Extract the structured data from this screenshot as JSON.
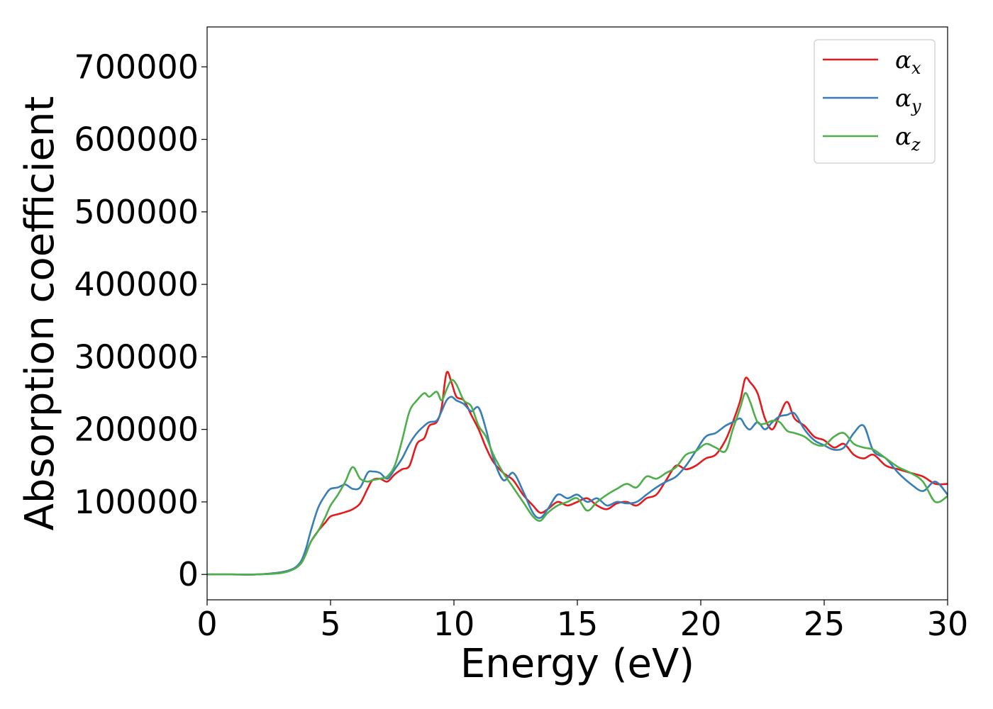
{
  "chart_data": {
    "type": "line",
    "title": "",
    "xlabel": "Energy (eV)",
    "ylabel": "Absorption coefficient",
    "xlim": [
      0,
      30
    ],
    "ylim": [
      -35000,
      755000
    ],
    "xticks": [
      0,
      5,
      10,
      15,
      20,
      25,
      30
    ],
    "yticks": [
      0,
      100000,
      200000,
      300000,
      400000,
      500000,
      600000,
      700000
    ],
    "grid": false,
    "legend_position": "top-right",
    "series": [
      {
        "name": "α_x",
        "symbol": "α",
        "subscript": "x",
        "color": "#e41a1c",
        "x": [
          0,
          1,
          2,
          3,
          3.5,
          3.8,
          4.0,
          4.2,
          4.5,
          4.8,
          5.0,
          5.3,
          5.6,
          5.9,
          6.2,
          6.5,
          6.7,
          7.0,
          7.3,
          7.6,
          7.9,
          8.2,
          8.5,
          8.8,
          9.0,
          9.3,
          9.5,
          9.7,
          9.9,
          10.1,
          10.4,
          10.7,
          11.0,
          11.3,
          11.6,
          12.0,
          12.4,
          12.8,
          13.2,
          13.5,
          13.8,
          14.2,
          14.6,
          15.0,
          15.4,
          15.8,
          16.2,
          16.6,
          17.0,
          17.4,
          17.8,
          18.2,
          18.6,
          19.0,
          19.4,
          19.8,
          20.2,
          20.6,
          21.0,
          21.3,
          21.6,
          21.8,
          22.0,
          22.3,
          22.6,
          22.9,
          23.2,
          23.5,
          23.8,
          24.2,
          24.6,
          25.0,
          25.4,
          25.8,
          26.2,
          26.6,
          27.0,
          27.5,
          28.0,
          28.5,
          29.0,
          29.5,
          30.0
        ],
        "y": [
          0,
          0,
          0,
          3000,
          8000,
          15000,
          28000,
          45000,
          60000,
          72000,
          80000,
          83000,
          86000,
          90000,
          98000,
          118000,
          130000,
          132000,
          128000,
          138000,
          145000,
          150000,
          180000,
          188000,
          205000,
          210000,
          230000,
          278000,
          265000,
          245000,
          240000,
          220000,
          200000,
          175000,
          155000,
          140000,
          130000,
          110000,
          95000,
          85000,
          90000,
          100000,
          95000,
          100000,
          105000,
          95000,
          90000,
          98000,
          100000,
          95000,
          105000,
          110000,
          130000,
          150000,
          145000,
          150000,
          160000,
          165000,
          185000,
          210000,
          240000,
          270000,
          265000,
          250000,
          215000,
          200000,
          220000,
          238000,
          215000,
          205000,
          190000,
          185000,
          175000,
          180000,
          165000,
          160000,
          165000,
          150000,
          145000,
          140000,
          135000,
          125000,
          125000
        ]
      },
      {
        "name": "α_y",
        "symbol": "α",
        "subscript": "y",
        "color": "#377eb8",
        "x": [
          0,
          1,
          2,
          3,
          3.5,
          3.8,
          4.0,
          4.2,
          4.5,
          4.8,
          5.0,
          5.3,
          5.6,
          5.9,
          6.2,
          6.5,
          6.7,
          7.0,
          7.3,
          7.6,
          7.9,
          8.2,
          8.5,
          8.8,
          9.0,
          9.3,
          9.5,
          9.7,
          9.9,
          10.1,
          10.4,
          10.7,
          11.0,
          11.3,
          11.6,
          12.0,
          12.4,
          12.8,
          13.2,
          13.5,
          13.8,
          14.2,
          14.6,
          15.0,
          15.4,
          15.8,
          16.2,
          16.6,
          17.0,
          17.4,
          17.8,
          18.2,
          18.6,
          19.0,
          19.4,
          19.8,
          20.2,
          20.6,
          21.0,
          21.3,
          21.6,
          21.8,
          22.0,
          22.3,
          22.6,
          22.9,
          23.2,
          23.5,
          23.8,
          24.2,
          24.6,
          25.0,
          25.4,
          25.8,
          26.2,
          26.6,
          27.0,
          27.5,
          28.0,
          28.5,
          29.0,
          29.5,
          30.0
        ],
        "y": [
          0,
          0,
          0,
          3000,
          8000,
          18000,
          35000,
          60000,
          92000,
          110000,
          118000,
          120000,
          124000,
          118000,
          120000,
          140000,
          142000,
          140000,
          132000,
          145000,
          160000,
          180000,
          195000,
          205000,
          210000,
          212000,
          225000,
          240000,
          245000,
          240000,
          235000,
          225000,
          230000,
          200000,
          160000,
          130000,
          140000,
          115000,
          85000,
          78000,
          90000,
          110000,
          105000,
          110000,
          100000,
          105000,
          95000,
          100000,
          98000,
          100000,
          110000,
          120000,
          128000,
          135000,
          150000,
          170000,
          190000,
          195000,
          205000,
          210000,
          215000,
          205000,
          200000,
          210000,
          200000,
          210000,
          218000,
          220000,
          222000,
          200000,
          185000,
          178000,
          172000,
          175000,
          195000,
          205000,
          170000,
          160000,
          140000,
          125000,
          115000,
          128000,
          110000
        ]
      },
      {
        "name": "α_z",
        "symbol": "α",
        "subscript": "z",
        "color": "#4daf4a",
        "x": [
          0,
          1,
          2,
          3,
          3.5,
          3.8,
          4.0,
          4.2,
          4.5,
          4.8,
          5.0,
          5.3,
          5.6,
          5.9,
          6.2,
          6.5,
          6.7,
          7.0,
          7.3,
          7.6,
          7.9,
          8.2,
          8.5,
          8.8,
          9.0,
          9.3,
          9.5,
          9.7,
          9.9,
          10.1,
          10.4,
          10.7,
          11.0,
          11.3,
          11.6,
          12.0,
          12.4,
          12.8,
          13.2,
          13.5,
          13.8,
          14.2,
          14.6,
          15.0,
          15.4,
          15.8,
          16.2,
          16.6,
          17.0,
          17.4,
          17.8,
          18.2,
          18.6,
          19.0,
          19.4,
          19.8,
          20.2,
          20.6,
          21.0,
          21.3,
          21.6,
          21.8,
          22.0,
          22.3,
          22.6,
          22.9,
          23.2,
          23.5,
          23.8,
          24.2,
          24.6,
          25.0,
          25.4,
          25.8,
          26.2,
          26.6,
          27.0,
          27.5,
          28.0,
          28.5,
          29.0,
          29.5,
          30.0
        ],
        "y": [
          0,
          0,
          0,
          2000,
          7000,
          15000,
          28000,
          45000,
          60000,
          80000,
          95000,
          110000,
          128000,
          148000,
          132000,
          128000,
          130000,
          132000,
          135000,
          150000,
          185000,
          225000,
          240000,
          250000,
          245000,
          252000,
          240000,
          255000,
          268000,
          262000,
          240000,
          232000,
          205000,
          190000,
          165000,
          140000,
          120000,
          100000,
          80000,
          74000,
          85000,
          95000,
          100000,
          105000,
          88000,
          100000,
          110000,
          118000,
          125000,
          120000,
          135000,
          132000,
          140000,
          148000,
          165000,
          170000,
          180000,
          175000,
          170000,
          200000,
          230000,
          250000,
          238000,
          210000,
          208000,
          212000,
          210000,
          198000,
          195000,
          190000,
          180000,
          178000,
          190000,
          195000,
          180000,
          175000,
          172000,
          160000,
          148000,
          140000,
          128000,
          100000,
          108000
        ]
      }
    ]
  }
}
